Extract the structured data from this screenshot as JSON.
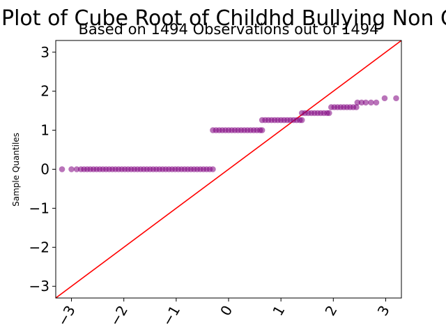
{
  "chart_data": {
    "type": "scatter",
    "title": "QQ Plot of Cube Root of Childhd Bullying Non Quit",
    "subtitle": "Based on 1494 Observations out of 1494",
    "xlabel": "",
    "ylabel": "Sample Quantiles",
    "xlim": [
      -3.3,
      3.3
    ],
    "ylim": [
      -3.3,
      3.3
    ],
    "x_ticks": [
      -3,
      -2,
      -1,
      0,
      1,
      2,
      3
    ],
    "x_tick_labels": [
      "−3",
      "−2",
      "−1",
      "0",
      "1",
      "2",
      "3"
    ],
    "x_tick_rotation": 60,
    "y_ticks": [
      3,
      2,
      1,
      0,
      -1,
      -2,
      -3
    ],
    "y_tick_labels": [
      "3",
      "2",
      "1",
      "0",
      "−1",
      "−2",
      "−3"
    ],
    "grid": false,
    "reference_line": {
      "slope": 1,
      "intercept": 0,
      "color": "#ff0000"
    },
    "marker_color": "#800080",
    "marker_alpha": 0.55,
    "series": [
      {
        "values_description_x": "theoretical quantiles",
        "points": [
          [
            -3.18,
            0
          ],
          [
            -3.0,
            0
          ],
          [
            -2.9,
            0
          ],
          [
            -2.82,
            0
          ],
          [
            -2.76,
            0
          ],
          [
            -2.7,
            0
          ],
          [
            -2.64,
            0
          ],
          [
            -2.58,
            0
          ],
          [
            -2.52,
            0
          ],
          [
            -2.46,
            0
          ],
          [
            -2.4,
            0
          ],
          [
            -2.34,
            0
          ],
          [
            -2.28,
            0
          ],
          [
            -2.22,
            0
          ],
          [
            -2.16,
            0
          ],
          [
            -2.1,
            0
          ],
          [
            -2.04,
            0
          ],
          [
            -1.98,
            0
          ],
          [
            -1.92,
            0
          ],
          [
            -1.86,
            0
          ],
          [
            -1.8,
            0
          ],
          [
            -1.74,
            0
          ],
          [
            -1.68,
            0
          ],
          [
            -1.62,
            0
          ],
          [
            -1.56,
            0
          ],
          [
            -1.5,
            0
          ],
          [
            -1.44,
            0
          ],
          [
            -1.38,
            0
          ],
          [
            -1.32,
            0
          ],
          [
            -1.26,
            0
          ],
          [
            -1.2,
            0
          ],
          [
            -1.14,
            0
          ],
          [
            -1.08,
            0
          ],
          [
            -1.02,
            0
          ],
          [
            -0.96,
            0
          ],
          [
            -0.9,
            0
          ],
          [
            -0.84,
            0
          ],
          [
            -0.78,
            0
          ],
          [
            -0.72,
            0
          ],
          [
            -0.66,
            0
          ],
          [
            -0.6,
            0
          ],
          [
            -0.54,
            0
          ],
          [
            -0.48,
            0
          ],
          [
            -0.42,
            0
          ],
          [
            -0.36,
            0
          ],
          [
            -0.3,
            0
          ],
          [
            -0.3,
            1
          ],
          [
            -0.24,
            1
          ],
          [
            -0.18,
            1
          ],
          [
            -0.12,
            1
          ],
          [
            -0.06,
            1
          ],
          [
            0.0,
            1
          ],
          [
            0.06,
            1
          ],
          [
            0.12,
            1
          ],
          [
            0.18,
            1
          ],
          [
            0.24,
            1
          ],
          [
            0.3,
            1
          ],
          [
            0.36,
            1
          ],
          [
            0.42,
            1
          ],
          [
            0.48,
            1
          ],
          [
            0.54,
            1
          ],
          [
            0.6,
            1
          ],
          [
            0.64,
            1
          ],
          [
            0.64,
            1.26
          ],
          [
            0.7,
            1.26
          ],
          [
            0.76,
            1.26
          ],
          [
            0.82,
            1.26
          ],
          [
            0.88,
            1.26
          ],
          [
            0.94,
            1.26
          ],
          [
            1.0,
            1.26
          ],
          [
            1.06,
            1.26
          ],
          [
            1.12,
            1.26
          ],
          [
            1.18,
            1.26
          ],
          [
            1.24,
            1.26
          ],
          [
            1.3,
            1.26
          ],
          [
            1.36,
            1.26
          ],
          [
            1.4,
            1.26
          ],
          [
            1.4,
            1.44
          ],
          [
            1.46,
            1.44
          ],
          [
            1.52,
            1.44
          ],
          [
            1.58,
            1.44
          ],
          [
            1.64,
            1.44
          ],
          [
            1.7,
            1.44
          ],
          [
            1.76,
            1.44
          ],
          [
            1.82,
            1.44
          ],
          [
            1.88,
            1.44
          ],
          [
            1.92,
            1.44
          ],
          [
            1.96,
            1.59
          ],
          [
            2.02,
            1.59
          ],
          [
            2.08,
            1.59
          ],
          [
            2.14,
            1.59
          ],
          [
            2.2,
            1.59
          ],
          [
            2.26,
            1.59
          ],
          [
            2.32,
            1.59
          ],
          [
            2.38,
            1.59
          ],
          [
            2.44,
            1.59
          ],
          [
            2.46,
            1.71
          ],
          [
            2.54,
            1.71
          ],
          [
            2.62,
            1.71
          ],
          [
            2.72,
            1.71
          ],
          [
            2.82,
            1.71
          ],
          [
            2.98,
            1.82
          ],
          [
            3.2,
            1.82
          ]
        ]
      }
    ]
  }
}
